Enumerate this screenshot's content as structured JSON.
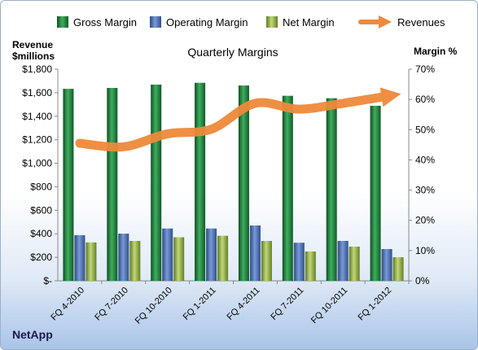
{
  "company": "NetApp",
  "chart_data": {
    "type": "bar",
    "title": "Quarterly Margins",
    "left_axis_title_line1": "Revenue",
    "left_axis_title_line2": "$millions",
    "right_axis_title": "Margin %",
    "categories": [
      "FQ 4-2010",
      "FQ 7-2010",
      "FQ 10-2010",
      "FQ 1-2011",
      "FQ 4-2011",
      "FQ 7-2011",
      "FQ 10-2011",
      "FQ 1-2012"
    ],
    "series": [
      {
        "name": "Gross Margin",
        "type": "bar",
        "axis": "right",
        "color": "#1e7b3c",
        "values": [
          63.5,
          63.8,
          64.9,
          65.5,
          64.6,
          61.2,
          60.4,
          57.9
        ]
      },
      {
        "name": "Operating Margin",
        "type": "bar",
        "axis": "right",
        "color": "#4a6fb5",
        "values": [
          15.1,
          15.6,
          17.3,
          17.3,
          18.3,
          12.6,
          13.2,
          10.5
        ]
      },
      {
        "name": "Net Margin",
        "type": "bar",
        "axis": "right",
        "color": "#8fae3b",
        "values": [
          12.7,
          13.2,
          14.4,
          14.9,
          13.2,
          9.7,
          11.3,
          7.8
        ]
      },
      {
        "name": "Revenues",
        "type": "line",
        "axis": "left",
        "color": "#ee8a3a",
        "values": [
          1170,
          1140,
          1250,
          1290,
          1510,
          1460,
          1510,
          1570
        ]
      }
    ],
    "left_axis": {
      "min": 0,
      "max": 1800,
      "step": 200,
      "tick_labels": [
        "$-",
        "$200",
        "$400",
        "$600",
        "$800",
        "$1,000",
        "$1,200",
        "$1,400",
        "$1,600",
        "$1,800"
      ]
    },
    "right_axis": {
      "min": 0,
      "max": 70,
      "step": 10,
      "tick_labels": [
        "0%",
        "10%",
        "20%",
        "30%",
        "40%",
        "50%",
        "60%",
        "70%"
      ]
    },
    "legend_position": "top",
    "grid": false
  }
}
